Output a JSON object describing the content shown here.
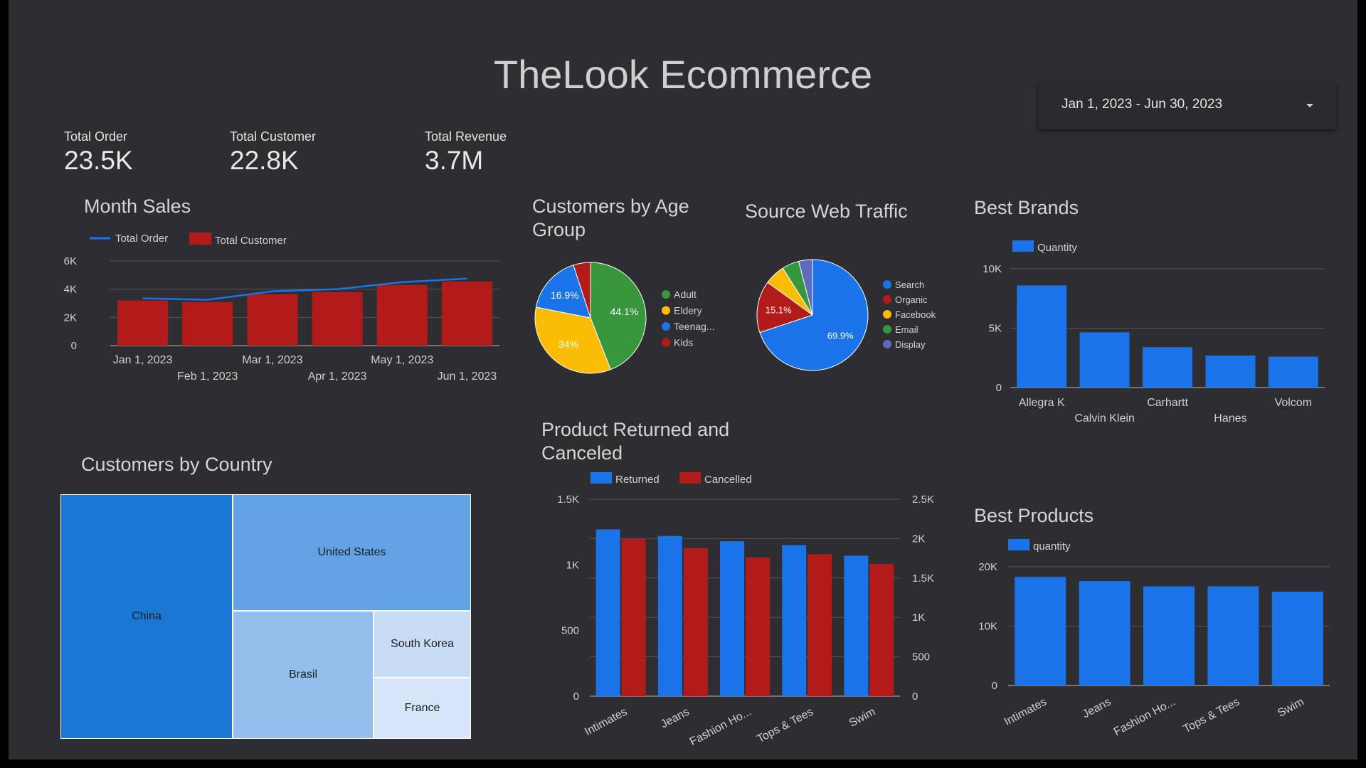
{
  "title": "TheLook Ecommerce",
  "date_range": "Jan 1, 2023 - Jun 30, 2023",
  "kpis": [
    {
      "label": "Total Order",
      "value": "23.5K"
    },
    {
      "label": "Total Customer",
      "value": "22.8K"
    },
    {
      "label": "Total Revenue",
      "value": "3.7M"
    }
  ],
  "colors": {
    "blue": "#1a73e8",
    "red": "#b31b1b",
    "green": "#38963c",
    "yellow": "#fbbc04",
    "purple": "#5c6bc0",
    "grid": "#55555a",
    "axis": "#bbbbbb",
    "text": "#d0d0d0"
  },
  "chart_data": [
    {
      "id": "month_sales",
      "type": "bar",
      "title": "Month Sales",
      "categories": [
        "Jan 1, 2023",
        "Feb 1, 2023",
        "Mar 1, 2023",
        "Apr 1, 2023",
        "May 1, 2023",
        "Jun 1, 2023"
      ],
      "series": [
        {
          "name": "Total Order",
          "kind": "line",
          "values": [
            3350,
            3250,
            3850,
            4000,
            4500,
            4750
          ]
        },
        {
          "name": "Total Customer",
          "kind": "bar",
          "values": [
            3200,
            3100,
            3650,
            3800,
            4300,
            4550
          ]
        }
      ],
      "ylim": [
        0,
        6000
      ],
      "yticks": [
        "0",
        "2K",
        "4K",
        "6K"
      ]
    },
    {
      "id": "age_group",
      "type": "pie",
      "title": "Customers by Age Group",
      "labels": [
        "Adult",
        "Eldery",
        "Teenag...",
        "Kids"
      ],
      "values": [
        44.1,
        34,
        16.9,
        5
      ],
      "display": [
        "44.1%",
        "34%",
        "16.9%",
        ""
      ]
    },
    {
      "id": "web_traffic",
      "type": "pie",
      "title": "Source Web Traffic",
      "labels": [
        "Search",
        "Organic",
        "Facebook",
        "Email",
        "Display"
      ],
      "values": [
        69.9,
        15.1,
        6,
        5,
        4
      ],
      "display": [
        "69.9%",
        "15.1%",
        "",
        "",
        ""
      ]
    },
    {
      "id": "best_brands",
      "type": "bar",
      "title": "Best Brands",
      "categories": [
        "Allegra K",
        "Calvin Klein",
        "Carhartt",
        "Hanes",
        "Volcom"
      ],
      "series": [
        {
          "name": "Quantity",
          "values": [
            8600,
            4650,
            3400,
            2700,
            2600
          ]
        }
      ],
      "ylim": [
        0,
        10000
      ],
      "yticks": [
        "0",
        "5K",
        "10K"
      ]
    },
    {
      "id": "returned_canceled",
      "type": "bar",
      "title": "Product Returned and Canceled",
      "categories": [
        "Intimates",
        "Jeans",
        "Fashion Ho...",
        "Tops & Tees",
        "Swim"
      ],
      "series": [
        {
          "name": "Returned",
          "axis": "left",
          "values": [
            1270,
            1220,
            1180,
            1150,
            1070
          ]
        },
        {
          "name": "Cancelled",
          "axis": "right",
          "values": [
            2000,
            1880,
            1760,
            1800,
            1680
          ]
        }
      ],
      "ylim": [
        0,
        1500
      ],
      "y2lim": [
        0,
        2500
      ],
      "yticks": [
        "0",
        "500",
        "1K",
        "1.5K"
      ],
      "y2ticks": [
        "0",
        "500",
        "1K",
        "1.5K",
        "2K",
        "2.5K"
      ]
    },
    {
      "id": "best_products",
      "type": "bar",
      "title": "Best Products",
      "categories": [
        "Intimates",
        "Jeans",
        "Fashion Ho...",
        "Tops & Tees",
        "Swim"
      ],
      "series": [
        {
          "name": "quantity",
          "values": [
            18300,
            17600,
            16700,
            16700,
            15800
          ]
        }
      ],
      "ylim": [
        0,
        20000
      ],
      "yticks": [
        "0",
        "10K",
        "20K"
      ]
    },
    {
      "id": "country",
      "type": "treemap",
      "title": "Customers by Country",
      "labels": [
        "China",
        "United States",
        "Brasil",
        "South Korea",
        "France"
      ]
    }
  ]
}
